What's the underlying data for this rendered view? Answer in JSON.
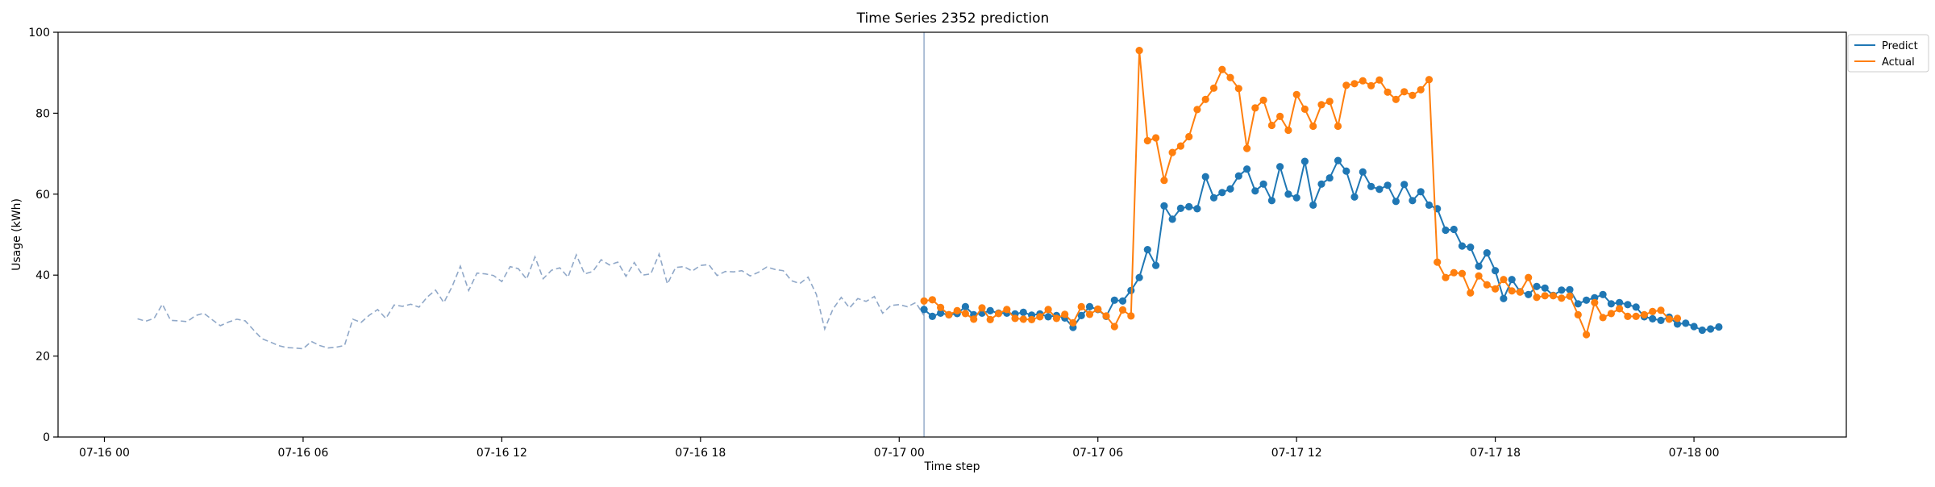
{
  "chart_data": {
    "type": "line",
    "title": "Time Series 2352 prediction",
    "xlabel": "Time step",
    "ylabel": "Usage (kWh)",
    "ylim": [
      0,
      100
    ],
    "yticks": [
      0,
      20,
      40,
      60,
      80,
      100
    ],
    "x_unit": "hours since 07-16 00:00",
    "xlim": [
      -1.4,
      52.6
    ],
    "xticks": [
      {
        "label": "07-16 00",
        "hours": 0
      },
      {
        "label": "07-16 06",
        "hours": 6
      },
      {
        "label": "07-16 12",
        "hours": 12
      },
      {
        "label": "07-16 18",
        "hours": 18
      },
      {
        "label": "07-17 00",
        "hours": 24
      },
      {
        "label": "07-17 06",
        "hours": 30
      },
      {
        "label": "07-17 12",
        "hours": 36
      },
      {
        "label": "07-17 18",
        "hours": 42
      },
      {
        "label": "07-18 00",
        "hours": 48
      }
    ],
    "history_start_hours": 1.0,
    "forecast_start_hours": 24.75,
    "step_hours": 0.25,
    "legend": {
      "position": "top-right",
      "entries": [
        "Predict",
        "Actual"
      ]
    },
    "colors": {
      "history": "#90a8c8",
      "predict": "#1f77b4",
      "actual": "#ff7f0e",
      "divider": "#8da6c6"
    },
    "history": [
      29.2,
      28.6,
      29.3,
      32.8,
      28.8,
      28.7,
      28.5,
      30.0,
      30.6,
      29.0,
      27.5,
      28.4,
      29.1,
      28.7,
      26.5,
      24.3,
      23.5,
      22.6,
      22.1,
      22.0,
      21.8,
      23.6,
      22.6,
      22.0,
      22.2,
      22.6,
      29.1,
      28.3,
      30.1,
      31.5,
      29.3,
      32.6,
      32.3,
      32.8,
      32.1,
      34.6,
      36.3,
      33.2,
      37.2,
      42.2,
      36.2,
      40.5,
      40.3,
      39.9,
      38.4,
      42.1,
      41.6,
      39.0,
      44.5,
      39.1,
      41.2,
      41.8,
      39.5,
      45.0,
      40.3,
      40.9,
      43.8,
      42.5,
      43.2,
      39.7,
      43.1,
      40.0,
      40.3,
      45.2,
      37.8,
      41.9,
      42.1,
      41.0,
      42.4,
      42.6,
      39.9,
      40.9,
      40.8,
      41.1,
      39.8,
      40.7,
      42.0,
      41.4,
      41.1,
      38.6,
      37.9,
      39.5,
      35.2,
      26.7,
      31.6,
      34.5,
      31.9,
      34.2,
      33.5,
      34.7,
      30.6,
      32.5,
      32.7,
      32.2,
      33.2,
      30.0
    ],
    "predict": [
      31.5,
      29.8,
      30.6,
      30.2,
      30.5,
      32.2,
      30.2,
      30.6,
      31.2,
      30.6,
      30.6,
      30.4,
      30.8,
      30.1,
      30.4,
      29.7,
      30.0,
      29.4,
      27.1,
      30.0,
      32.2,
      31.5,
      29.8,
      33.8,
      33.6,
      36.2,
      39.4,
      46.3,
      42.4,
      57.1,
      53.8,
      56.5,
      56.9,
      56.4,
      64.3,
      59.1,
      60.4,
      61.3,
      64.5,
      66.2,
      60.8,
      62.5,
      58.4,
      66.8,
      60.0,
      59.1,
      68.1,
      57.3,
      62.5,
      64.0,
      68.3,
      65.7,
      59.3,
      65.5,
      61.9,
      61.2,
      62.2,
      58.2,
      62.4,
      58.4,
      60.6,
      57.3,
      56.4,
      51.1,
      51.3,
      47.2,
      46.9,
      42.2,
      45.5,
      41.1,
      34.2,
      38.9,
      35.9,
      35.2,
      37.2,
      36.8,
      35.0,
      36.3,
      36.4,
      32.9,
      33.8,
      34.4,
      35.2,
      32.9,
      33.2,
      32.7,
      32.1,
      29.7,
      29.2,
      28.8,
      29.6,
      27.9,
      28.1,
      27.3,
      26.4,
      26.7,
      27.2
    ],
    "actual": [
      33.6,
      33.9,
      32.0,
      30.2,
      31.2,
      30.5,
      29.1,
      31.9,
      29.0,
      30.5,
      31.5,
      29.3,
      29.1,
      29.0,
      29.7,
      31.5,
      29.3,
      30.3,
      28.2,
      32.2,
      30.3,
      31.6,
      29.9,
      27.3,
      31.4,
      29.9,
      95.5,
      73.2,
      73.9,
      63.4,
      70.3,
      71.9,
      74.2,
      80.9,
      83.4,
      86.2,
      90.8,
      88.8,
      86.1,
      71.3,
      81.3,
      83.2,
      77.0,
      79.2,
      75.8,
      84.6,
      81.0,
      76.8,
      82.1,
      82.9,
      76.8,
      86.9,
      87.3,
      88.0,
      86.8,
      88.2,
      85.2,
      83.4,
      85.3,
      84.4,
      85.8,
      88.3,
      43.2,
      39.4,
      40.6,
      40.4,
      35.6,
      39.8,
      37.6,
      36.6,
      38.9,
      36.1,
      35.8,
      39.4,
      34.5,
      34.9,
      34.9,
      34.3,
      34.8,
      30.2,
      25.3,
      33.2,
      29.5,
      30.5,
      31.7,
      29.8,
      29.8,
      30.2,
      31.0,
      31.3,
      29.1,
      29.3
    ]
  }
}
